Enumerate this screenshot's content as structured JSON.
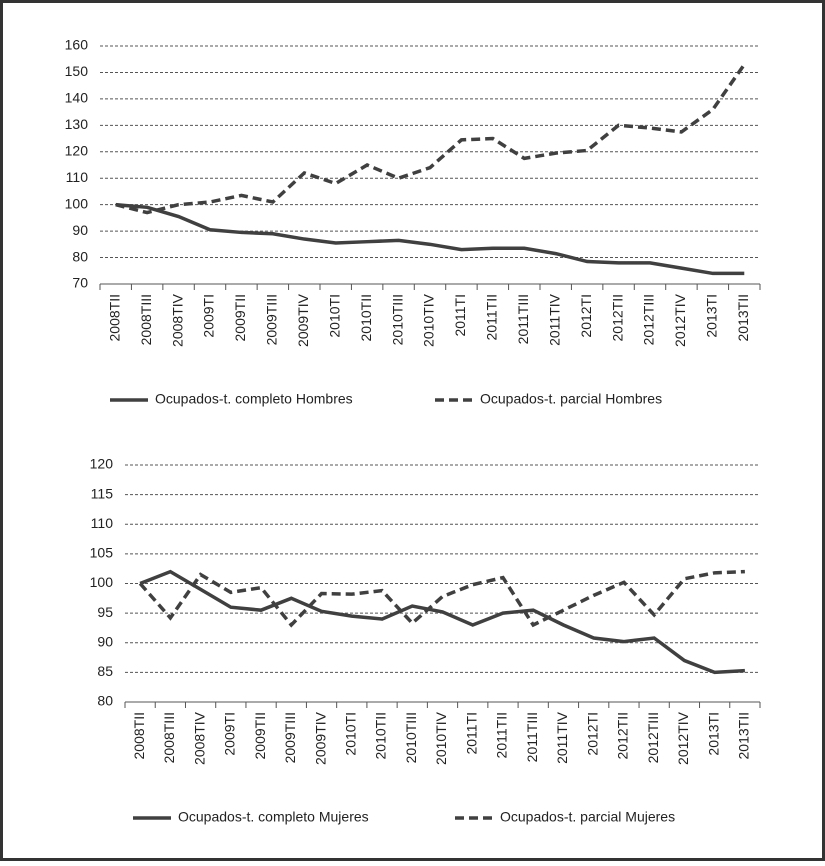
{
  "chart_data": [
    {
      "type": "line",
      "categories": [
        "2008TII",
        "2008TIII",
        "2008TIV",
        "2009TI",
        "2009TII",
        "2009TIII",
        "2009TIV",
        "2010TI",
        "2010TII",
        "2010TIII",
        "2010TIV",
        "2011TI",
        "2011TII",
        "2011TIII",
        "2011TIV",
        "2012TI",
        "2012TII",
        "2012TIII",
        "2012TIV",
        "2013TI",
        "2013TII"
      ],
      "series": [
        {
          "name": "Ocupados-t. completo Hombres",
          "color": "#404040",
          "dashed": false,
          "values": [
            100,
            99,
            95.5,
            90.5,
            89.5,
            89,
            87,
            85.5,
            86,
            86.5,
            85,
            83,
            83.5,
            83.5,
            81.5,
            78.5,
            78,
            78,
            76,
            74,
            74
          ]
        },
        {
          "name": "Ocupados-t. parcial Hombres",
          "color": "#404040",
          "dashed": true,
          "values": [
            100,
            97,
            100,
            101,
            103.5,
            101,
            112,
            108,
            115,
            110,
            114,
            124.5,
            125,
            117.5,
            119.5,
            120.5,
            130,
            129,
            127.5,
            136,
            153
          ]
        }
      ],
      "ylim": [
        70,
        160
      ],
      "yticks": [
        70,
        80,
        90,
        100,
        110,
        120,
        130,
        140,
        150,
        160
      ],
      "grid": true
    },
    {
      "type": "line",
      "categories": [
        "2008TII",
        "2008TIII",
        "2008TIV",
        "2009TI",
        "2009TII",
        "2009TIII",
        "2009TIV",
        "2010TI",
        "2010TII",
        "2010TIII",
        "2010TIV",
        "2011TI",
        "2011TII",
        "2011TIII",
        "2011TIV",
        "2012TI",
        "2012TII",
        "2012TIII",
        "2012TIV",
        "2013TI",
        "2013TII"
      ],
      "series": [
        {
          "name": "Ocupados-t. completo Mujeres",
          "color": "#404040",
          "dashed": false,
          "values": [
            100,
            102,
            99,
            96,
            95.5,
            97.5,
            95.3,
            94.5,
            94,
            96.2,
            95.2,
            93,
            95,
            95.5,
            93,
            90.8,
            90.2,
            90.8,
            87,
            85,
            85.3
          ]
        },
        {
          "name": "Ocupados-t. parcial Mujeres",
          "color": "#404040",
          "dashed": true,
          "values": [
            100,
            94.2,
            101.5,
            98.5,
            99.3,
            93,
            98.3,
            98.2,
            98.8,
            93.3,
            97.8,
            99.8,
            101,
            93,
            95.5,
            98,
            100.2,
            94.7,
            100.8,
            101.8,
            102
          ]
        }
      ],
      "ylim": [
        80,
        120
      ],
      "yticks": [
        80,
        85,
        90,
        95,
        100,
        105,
        110,
        115,
        120
      ],
      "grid": true
    }
  ]
}
